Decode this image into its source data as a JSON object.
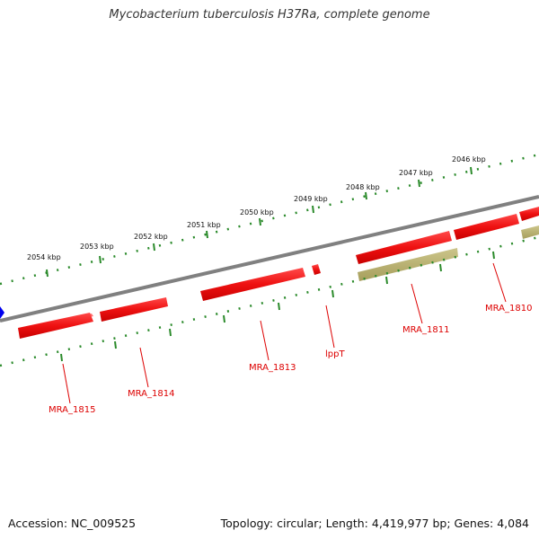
{
  "title": "Mycobacterium tuberculosis H37Ra, complete genome",
  "footer": {
    "accession": "Accession: NC_009525",
    "topology": "Topology: circular; Length: 4,419,977 bp; Genes: 4,084"
  },
  "colors": {
    "backbone": "#808080",
    "gene_forward": "#ee1111",
    "gene_other": "#b3ac6a",
    "tick": "#2a8a2a",
    "label": "#dd0000",
    "marker": "#0000ee"
  },
  "kbp_labels": [
    "2046 kbp",
    "2047 kbp",
    "2048 kbp",
    "2049 kbp",
    "2050 kbp",
    "2051 kbp",
    "2052 kbp",
    "2053 kbp",
    "2054 kbp"
  ],
  "gene_labels": [
    "MRA_1810",
    "MRA_1811",
    "lppT",
    "MRA_1813",
    "MRA_1814",
    "MRA_1815"
  ]
}
